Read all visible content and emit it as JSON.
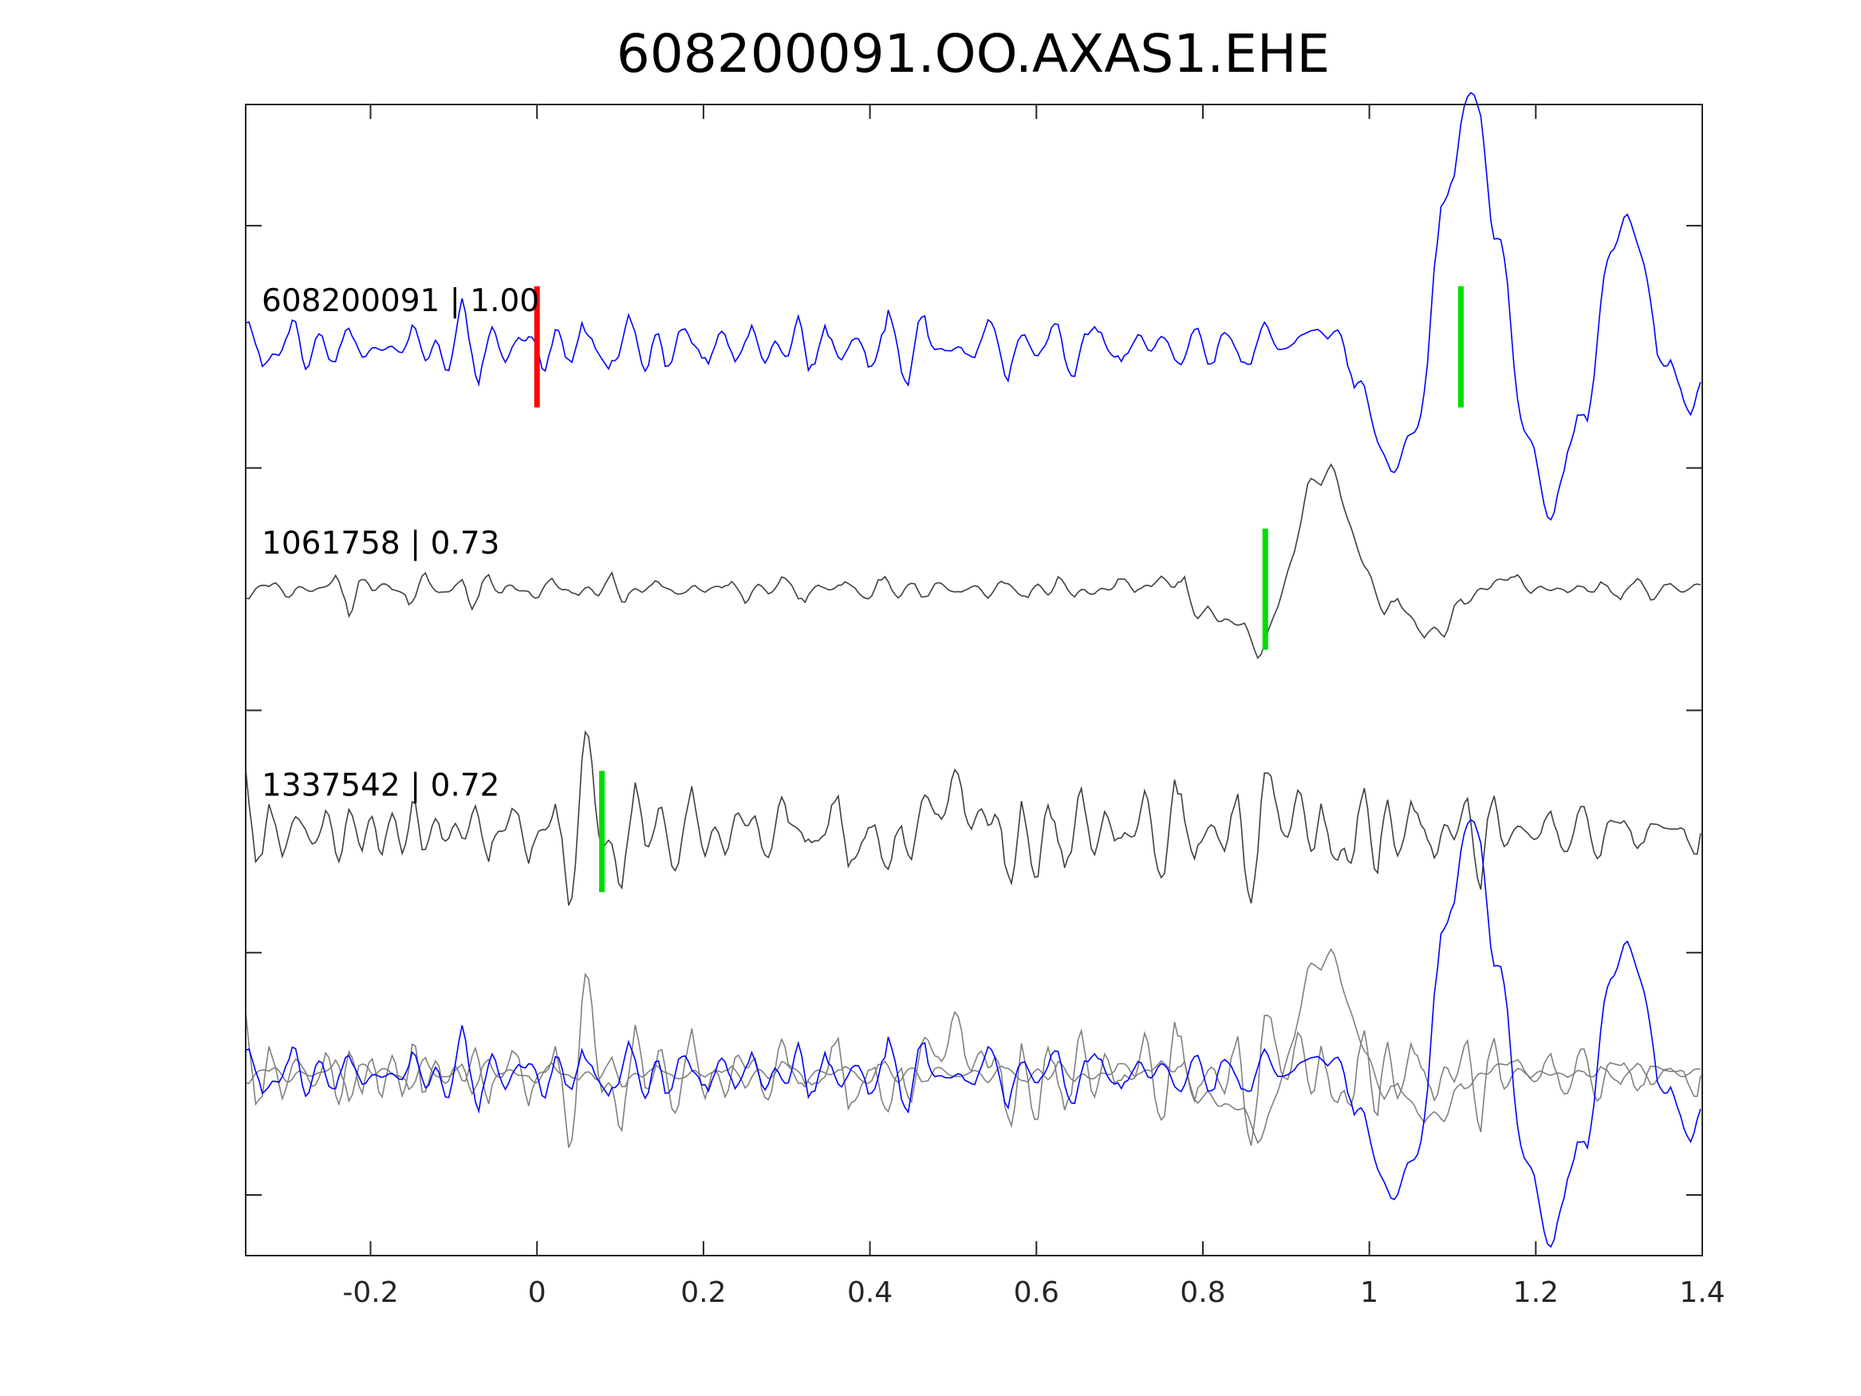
{
  "chart_data": {
    "type": "line",
    "title": "608200091.OO.AXAS1.EHE",
    "xlabel": "",
    "ylabel": "",
    "xlim": [
      -0.35,
      1.4
    ],
    "ylim": [
      -0.75,
      4.0
    ],
    "xticks": [
      -0.2,
      0,
      0.2,
      0.4,
      0.6,
      0.8,
      1,
      1.2,
      1.4
    ],
    "xtick_labels": [
      "-0.2",
      "0",
      "0.2",
      "0.4",
      "0.6",
      "0.8",
      "1",
      "1.2",
      "1.4"
    ],
    "yticks": [
      -0.5,
      0.5,
      1.5,
      2.5,
      3.5
    ],
    "grid": false,
    "series": [
      {
        "name": "608200091",
        "label": "608200091 | 1.00",
        "baseline": 3,
        "color": "#0000ff",
        "seed": 11,
        "noise": 0.13,
        "events": [
          {
            "t": 1.12,
            "amp": 1.0,
            "f": 5.5
          },
          {
            "t": 1.31,
            "amp": 0.45,
            "f": 7
          }
        ],
        "picks": [
          {
            "t": 0.0,
            "color": "#ff0000"
          },
          {
            "t": 1.11,
            "color": "#00dd00"
          }
        ]
      },
      {
        "name": "1061758",
        "label": "1061758 | 0.73",
        "baseline": 2,
        "color": "#404040",
        "seed": 23,
        "noise": 0.05,
        "events": [
          {
            "t": 0.95,
            "amp": 0.5,
            "f": 5
          },
          {
            "t": 1.04,
            "amp": 0.15,
            "f": 8
          },
          {
            "t": 0.84,
            "amp": 0.08,
            "f": 10
          }
        ],
        "picks": [
          {
            "t": 0.875,
            "color": "#00dd00"
          }
        ]
      },
      {
        "name": "1337542",
        "label": "1337542 | 0.72",
        "baseline": 1,
        "color": "#404040",
        "seed": 37,
        "noise": 0.2,
        "events": [
          {
            "t": 0.06,
            "amp": 0.45,
            "f": 22
          },
          {
            "t": 0.5,
            "amp": 0.15,
            "f": 6
          },
          {
            "t": 0.9,
            "amp": 0.12,
            "f": 9
          }
        ],
        "picks": [
          {
            "t": 0.078,
            "color": "#00dd00"
          }
        ]
      }
    ],
    "overlay": {
      "baseline": 0,
      "background_color": "#808080",
      "foreground_color": "#0000ff"
    }
  }
}
